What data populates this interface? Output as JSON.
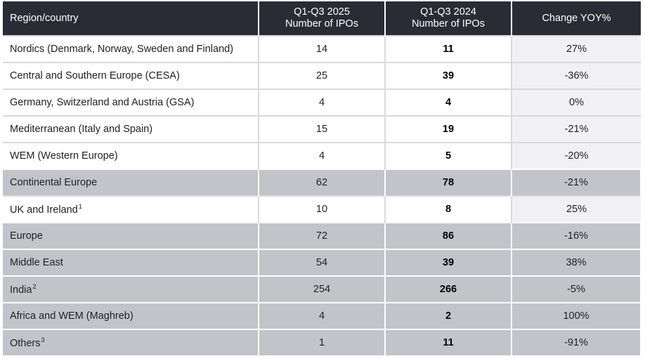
{
  "table": {
    "header": [
      "Region/country",
      "Q1-Q3 2025\nNumber of IPOs",
      "Q1-Q3 2024\nNumber of IPOs",
      "Change YOY%"
    ],
    "rows": [
      {
        "cells": [
          "Nordics (Denmark, Norway, Sweden and Finland)",
          "14",
          "11",
          "27%"
        ],
        "shaded": false
      },
      {
        "cells": [
          "Central and Southern Europe (CESA)",
          "25",
          "39",
          "-36%"
        ],
        "shaded": false
      },
      {
        "cells": [
          "Germany, Switzerland and Austria (GSA)",
          "4",
          "4",
          "0%"
        ],
        "shaded": false
      },
      {
        "cells": [
          "Mediterranean (Italy and Spain)",
          "15",
          "19",
          "-21%"
        ],
        "shaded": false
      },
      {
        "cells": [
          "WEM (Western Europe)",
          "4",
          "5",
          "-20%"
        ],
        "shaded": false
      },
      {
        "cells": [
          "Continental Europe",
          "62",
          "78",
          "-21%"
        ],
        "shaded": true
      },
      {
        "cells": [
          "UK and Ireland",
          "10",
          "8",
          "25%"
        ],
        "note": "1",
        "shaded": false
      },
      {
        "cells": [
          "Europe",
          "72",
          "86",
          "-16%"
        ],
        "shaded": true
      },
      {
        "cells": [
          "Middle East",
          "54",
          "39",
          "38%"
        ],
        "shaded": true
      },
      {
        "cells": [
          "India",
          "254",
          "266",
          "-5%"
        ],
        "note": "2",
        "shaded": true
      },
      {
        "cells": [
          "Africa and WEM (Maghreb)",
          "4",
          "2",
          "100%"
        ],
        "shaded": true
      },
      {
        "cells": [
          "Others",
          "1",
          "11",
          "-91%"
        ],
        "note": "3",
        "shaded": true
      }
    ]
  }
}
